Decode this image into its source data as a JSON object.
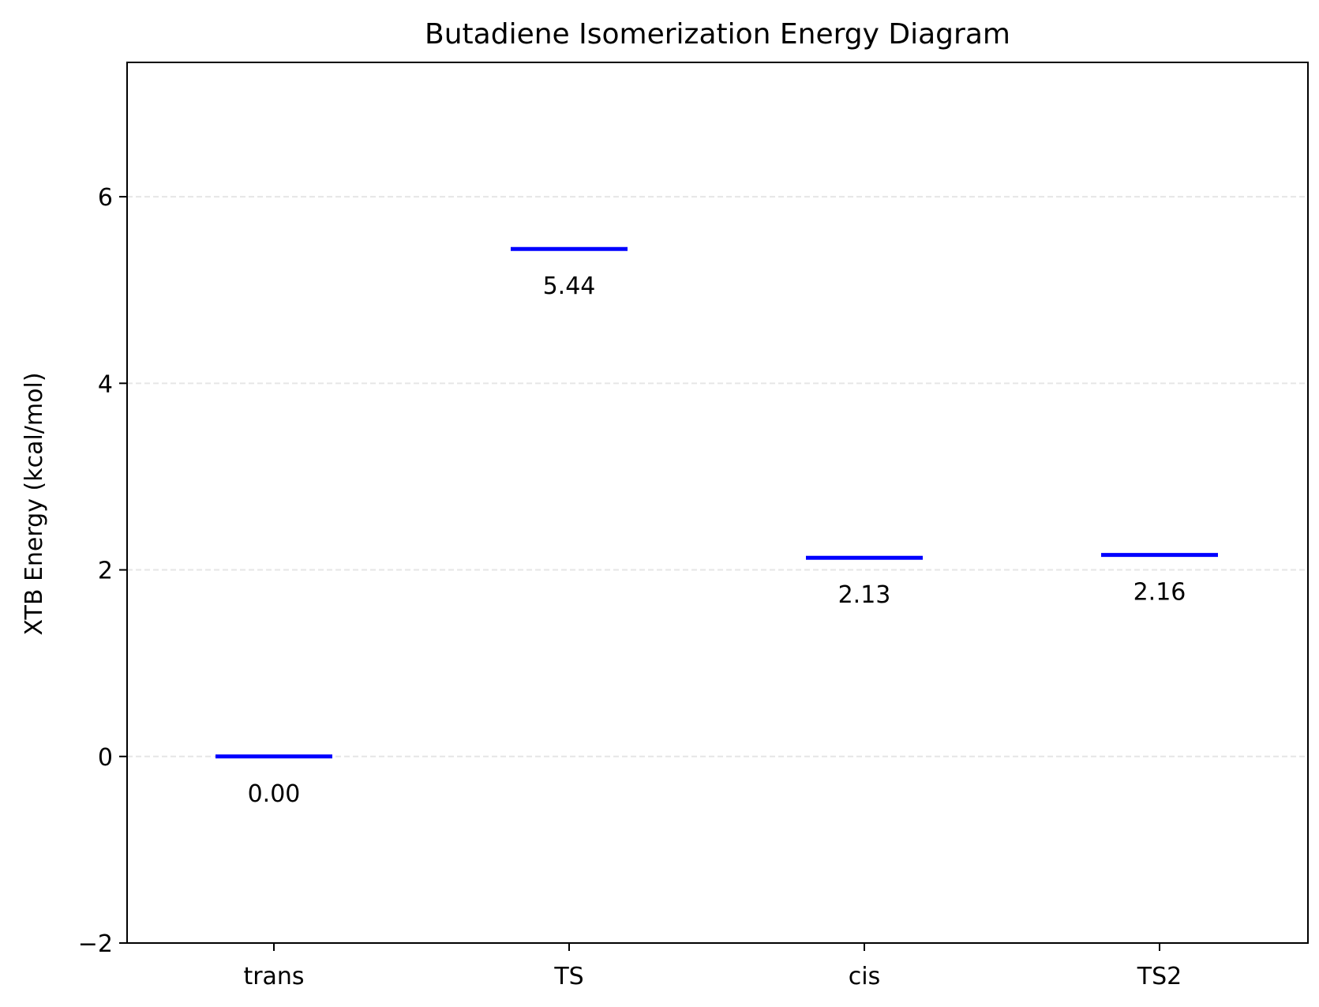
{
  "chart_data": {
    "type": "energy_diagram",
    "title": "Butadiene Isomerization Energy Diagram",
    "xlabel": "",
    "ylabel": "XTB Energy (kcal/mol)",
    "categories": [
      "trans",
      "TS",
      "cis",
      "TS2"
    ],
    "values": [
      0.0,
      5.44,
      2.13,
      2.16
    ],
    "value_labels": [
      "0.00",
      "5.44",
      "2.13",
      "2.16"
    ],
    "ylim": [
      -2,
      7.44
    ],
    "yticks": [
      -2,
      0,
      2,
      4,
      6
    ],
    "ytick_labels": [
      "−2",
      "0",
      "2",
      "4",
      "6"
    ],
    "grid": {
      "axis": "y",
      "style": "dashed"
    },
    "level_color": "#0000ff",
    "grid_color": "#e6e6e6",
    "legend": "none"
  }
}
